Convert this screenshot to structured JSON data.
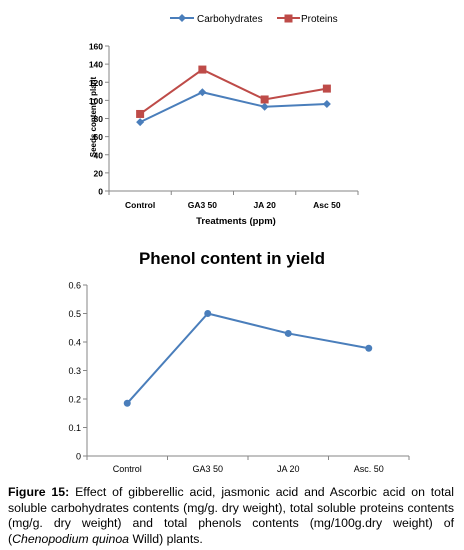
{
  "chart_data": [
    {
      "type": "line",
      "title": "",
      "xlabel": "Treatments (ppm)",
      "ylabel": "Seeds content / plant",
      "categories": [
        "Control",
        "GA3 50",
        "JA 20",
        "Asc 50"
      ],
      "ylim": [
        0,
        160
      ],
      "yticks": [
        "0",
        "20",
        "40",
        "60",
        "80",
        "100",
        "120",
        "140",
        "160"
      ],
      "grid": false,
      "legend_position": "top",
      "series": [
        {
          "name": "Carbohydrates",
          "values": [
            76,
            109,
            93,
            96
          ],
          "color": "#4a7ebb",
          "marker": "diamond"
        },
        {
          "name": "Proteins",
          "values": [
            85,
            134,
            101,
            113
          ],
          "color": "#be4b48",
          "marker": "square"
        }
      ]
    },
    {
      "type": "line",
      "title": "Phenol content in yield",
      "xlabel": "",
      "ylabel": "",
      "categories": [
        "Control",
        "GA3 50",
        "JA 20",
        "Asc. 50"
      ],
      "ylim": [
        0,
        0.6
      ],
      "yticks": [
        "0",
        "0.1",
        "0.2",
        "0.3",
        "0.4",
        "0.5",
        "0.6"
      ],
      "grid": false,
      "legend_position": "none",
      "series": [
        {
          "values": [
            0.185,
            0.5,
            0.43,
            0.378
          ],
          "color": "#4a7ebb",
          "marker": "circle"
        }
      ]
    }
  ],
  "caption": {
    "label": "Figure 15:",
    "text_before_italic": " Effect of gibberellic acid, jasmonic acid and Ascorbic acid on total soluble carbohydrates contents (mg/g. dry weight), total soluble proteins contents (mg/g. dry weight) and total phenols contents (mg/100g.dry weight) of (",
    "italic": "Chenopodium quinoa",
    "text_after_italic": " Willd) plants."
  }
}
